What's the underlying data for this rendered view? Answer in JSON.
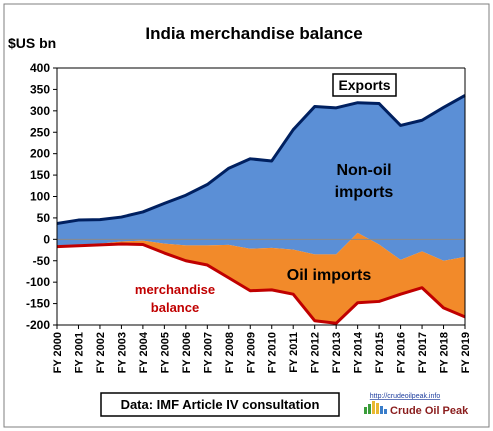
{
  "chart_data": {
    "type": "area",
    "title": "India merchandise balance",
    "ylabel": "$US bn",
    "ylim": [
      -200,
      400
    ],
    "yticks": [
      400,
      350,
      300,
      250,
      200,
      150,
      100,
      50,
      0,
      -50,
      -100,
      -150,
      -200
    ],
    "grid": false,
    "categories": [
      "FY 2000",
      "FY 2001",
      "FY 2002",
      "FY 2003",
      "FY 2004",
      "FY 2005",
      "FY 2006",
      "FY 2007",
      "FY 2008",
      "FY 2009",
      "FY 2010",
      "FY 2011",
      "FY 2012",
      "FY 2013",
      "FY 2014",
      "FY 2015",
      "FY 2016",
      "FY 2017",
      "FY 2018",
      "FY 2019"
    ],
    "series": [
      {
        "name": "Exports",
        "color": "#002060",
        "values": [
          37,
          45,
          46,
          52,
          64,
          84,
          103,
          128,
          166,
          188,
          183,
          256,
          310,
          307,
          319,
          317,
          266,
          278,
          308,
          336
        ]
      },
      {
        "name": "Oil imports",
        "color": "#f28a2a",
        "values": [
          -14,
          -12,
          -10,
          -5,
          -3,
          -10,
          -14,
          -14,
          -13,
          -22,
          -20,
          -24,
          -35,
          -35,
          15,
          -12,
          -48,
          -28,
          -50,
          -41
        ]
      },
      {
        "name": "merchandise balance",
        "color": "#c00000",
        "values": [
          -17,
          -15,
          -13,
          -11,
          -12,
          -32,
          -50,
          -60,
          -90,
          -120,
          -118,
          -128,
          -190,
          -196,
          -148,
          -145,
          -128,
          -113,
          -160,
          -181
        ]
      }
    ],
    "region_colors": {
      "non_oil": "#5b8fd6",
      "oil": "#f28a2a"
    },
    "annotations": {
      "exports": "Exports",
      "non_oil_1": "Non-oil",
      "non_oil_2": "imports",
      "oil": "Oil imports",
      "balance_1": "merchandise",
      "balance_2": "balance"
    },
    "source": "Data: IMF Article IV consultation"
  },
  "logo": {
    "url_text": "http://crudeoilpeak.info",
    "name": "Crude Oil Peak"
  }
}
